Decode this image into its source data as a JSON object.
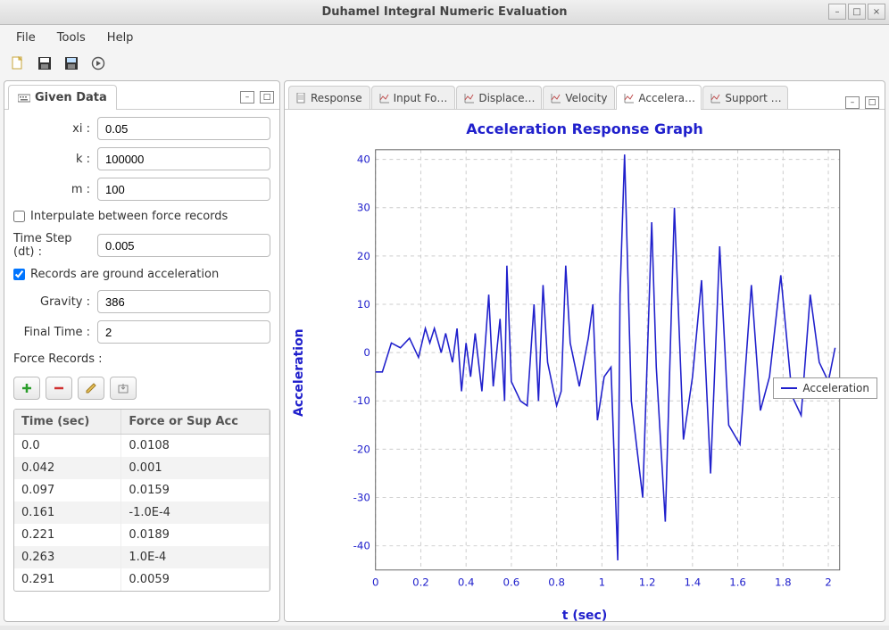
{
  "window": {
    "title": "Duhamel Integral Numeric Evaluation"
  },
  "menu": {
    "file": "File",
    "tools": "Tools",
    "help": "Help"
  },
  "toolbar_icons": [
    "new",
    "save",
    "open",
    "run"
  ],
  "left_panel": {
    "tab_label": "Given Data",
    "fields": {
      "xi": {
        "label": "xi :",
        "value": "0.05"
      },
      "k": {
        "label": "k :",
        "value": "100000"
      },
      "m": {
        "label": "m :",
        "value": "100"
      },
      "interpolate": {
        "label": "Interpulate between force records",
        "checked": false
      },
      "dt": {
        "label": "Time Step (dt) :",
        "value": "0.005"
      },
      "ground_accel": {
        "label": "Records are ground acceleration",
        "checked": true
      },
      "gravity": {
        "label": "Gravity :",
        "value": "386"
      },
      "final_time": {
        "label": "Final Time :",
        "value": "2"
      }
    },
    "records_label": "Force Records :",
    "table": {
      "columns": [
        "Time (sec)",
        "Force or Sup Acc"
      ],
      "rows": [
        [
          "0.0",
          "0.0108"
        ],
        [
          "0.042",
          "0.001"
        ],
        [
          "0.097",
          "0.0159"
        ],
        [
          "0.161",
          "-1.0E-4"
        ],
        [
          "0.221",
          "0.0189"
        ],
        [
          "0.263",
          "1.0E-4"
        ],
        [
          "0.291",
          "0.0059"
        ]
      ]
    }
  },
  "right_panel": {
    "tabs": [
      {
        "label": "Response",
        "icon": "doc"
      },
      {
        "label": "Input Fo…",
        "icon": "chart"
      },
      {
        "label": "Displace…",
        "icon": "chart"
      },
      {
        "label": "Velocity",
        "icon": "chart"
      },
      {
        "label": "Accelera…",
        "icon": "chart",
        "active": true
      },
      {
        "label": "Support …",
        "icon": "chart"
      }
    ]
  },
  "chart": {
    "title": "Acceleration Response Graph",
    "type": "line",
    "xlabel": "t (sec)",
    "ylabel": "Acceleration",
    "xlim": [
      0,
      2.05
    ],
    "ylim": [
      -45,
      42
    ],
    "xticks": [
      0,
      0.2,
      0.4,
      0.6,
      0.8,
      1,
      1.2,
      1.4,
      1.6,
      1.8,
      2
    ],
    "yticks": [
      -40,
      -30,
      -20,
      -10,
      0,
      10,
      20,
      30,
      40
    ],
    "grid_color": "#cccccc",
    "axis_color": "#666666",
    "background_color": "#ffffff",
    "tick_label_color": "#2020cc",
    "tick_fontsize": 12,
    "line_color": "#2020cc",
    "line_width": 1.6,
    "legend": {
      "label": "Acceleration"
    },
    "series_x": [
      0,
      0.03,
      0.07,
      0.11,
      0.15,
      0.19,
      0.22,
      0.24,
      0.26,
      0.29,
      0.31,
      0.34,
      0.36,
      0.38,
      0.4,
      0.42,
      0.44,
      0.47,
      0.5,
      0.52,
      0.55,
      0.57,
      0.58,
      0.6,
      0.64,
      0.67,
      0.7,
      0.72,
      0.74,
      0.76,
      0.8,
      0.82,
      0.84,
      0.86,
      0.9,
      0.94,
      0.96,
      0.98,
      1.01,
      1.04,
      1.07,
      1.08,
      1.1,
      1.13,
      1.18,
      1.22,
      1.24,
      1.28,
      1.32,
      1.36,
      1.4,
      1.44,
      1.48,
      1.52,
      1.56,
      1.61,
      1.66,
      1.7,
      1.74,
      1.79,
      1.84,
      1.88,
      1.92,
      1.96,
      2.0,
      2.03
    ],
    "series_y": [
      -4,
      -4,
      2,
      1,
      3,
      -1,
      5,
      2,
      5,
      0,
      4,
      -2,
      5,
      -8,
      2,
      -5,
      4,
      -8,
      12,
      -7,
      7,
      -10,
      18,
      -6,
      -10,
      -11,
      10,
      -10,
      14,
      -2,
      -11,
      -8,
      18,
      2,
      -7,
      3,
      10,
      -14,
      -5,
      -3,
      -43,
      12,
      41,
      -10,
      -30,
      27,
      -3,
      -35,
      30,
      -18,
      -5,
      15,
      -25,
      22,
      -15,
      -19,
      14,
      -12,
      -5,
      16,
      -9,
      -13,
      12,
      -2,
      -6,
      1
    ]
  }
}
